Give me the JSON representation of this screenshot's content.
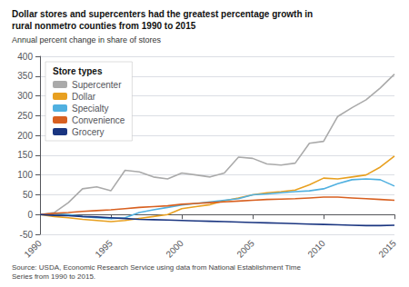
{
  "chart_data": {
    "type": "line",
    "title": "Dollar stores and supercenters had the greatest percentage growth in\nrural nonmetro counties from 1990 to 2015",
    "subtitle": "Annual percent change in share of stores",
    "source": "Source: USDA, Economic Research Service using data from National Establishment Time\nSeries from 1990 to 2015.",
    "legend_title": "Store types",
    "x": [
      1990,
      1991,
      1992,
      1993,
      1994,
      1995,
      1996,
      1997,
      1998,
      1999,
      2000,
      2001,
      2002,
      2003,
      2004,
      2005,
      2006,
      2007,
      2008,
      2009,
      2010,
      2011,
      2012,
      2013,
      2014,
      2015
    ],
    "series": [
      {
        "name": "Supercenter",
        "color": "#aaaaaa",
        "values": [
          0,
          5,
          30,
          65,
          70,
          60,
          112,
          108,
          95,
          90,
          105,
          100,
          95,
          105,
          145,
          142,
          128,
          125,
          130,
          180,
          185,
          248,
          270,
          290,
          320,
          355
        ]
      },
      {
        "name": "Dollar",
        "color": "#e8a020",
        "values": [
          0,
          -5,
          -8,
          -12,
          -15,
          -18,
          -15,
          -10,
          -5,
          0,
          15,
          20,
          25,
          35,
          42,
          50,
          55,
          58,
          62,
          75,
          92,
          90,
          95,
          100,
          120,
          148
        ]
      },
      {
        "name": "Specialty",
        "color": "#50b0e0",
        "values": [
          0,
          2,
          0,
          -5,
          -8,
          -10,
          -8,
          5,
          12,
          18,
          24,
          28,
          32,
          36,
          40,
          50,
          52,
          55,
          58,
          60,
          65,
          78,
          88,
          90,
          88,
          72
        ]
      },
      {
        "name": "Convenience",
        "color": "#d86020",
        "values": [
          0,
          3,
          5,
          8,
          10,
          12,
          15,
          18,
          20,
          22,
          26,
          28,
          30,
          32,
          34,
          36,
          38,
          39,
          40,
          42,
          44,
          44,
          42,
          40,
          38,
          36
        ]
      },
      {
        "name": "Grocery",
        "color": "#1a3580",
        "values": [
          0,
          -2,
          -3,
          -5,
          -6,
          -8,
          -10,
          -12,
          -13,
          -14,
          -15,
          -16,
          -17,
          -18,
          -19,
          -20,
          -21,
          -22,
          -23,
          -24,
          -25,
          -26,
          -27,
          -28,
          -28,
          -27
        ]
      }
    ],
    "xlim": [
      1990,
      2015
    ],
    "xticks": [
      1990,
      1995,
      2000,
      2005,
      2010,
      2015
    ],
    "ylim": [
      -50,
      400
    ],
    "yticks": [
      -50,
      0,
      50,
      100,
      150,
      200,
      250,
      300,
      350,
      400
    ],
    "grid": true,
    "legend": "upper left"
  }
}
